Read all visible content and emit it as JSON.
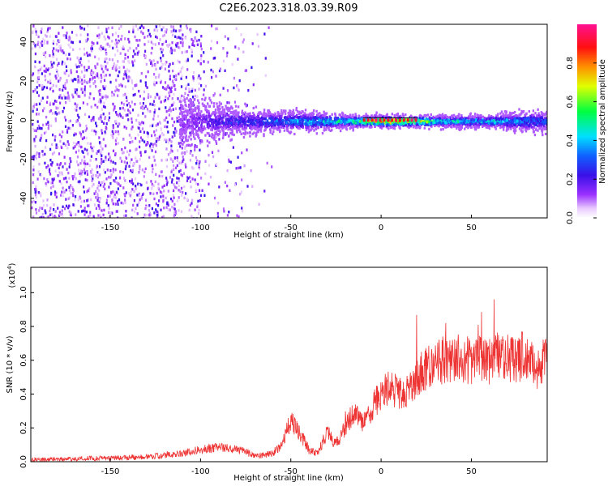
{
  "page_title": "C2E6.2023.318.03.39.R09",
  "chart_data": [
    {
      "type": "heatmap",
      "title": "",
      "xlabel": "Height of straight line (km)",
      "ylabel": "Frequency (Hz)",
      "xlim": [
        -194,
        92
      ],
      "ylim": [
        -50,
        49
      ],
      "xticks": [
        -150,
        -100,
        -50,
        0,
        50
      ],
      "yticks": [
        -40,
        -20,
        0,
        20,
        40
      ],
      "x_tick_labels": [
        "-150",
        "-100",
        "-50",
        "0",
        "50"
      ],
      "y_tick_labels": [
        "-40",
        "-20",
        "0",
        "20",
        "40"
      ],
      "colorbar": {
        "label": "Normalized spectral amplitude",
        "range": [
          0.0,
          1.0
        ],
        "ticks": [
          0.0,
          0.2,
          0.4,
          0.6,
          0.8
        ],
        "tick_labels": [
          "0.0",
          "0.2",
          "0.4",
          "0.6",
          "0.8"
        ],
        "colormap": "rainbow (white-violet-purple-blue-cyan-green-yellow-orange-red-magenta)"
      },
      "description_of_data": "Scattered low amplitude noise across all frequencies for heights below about -100 km; a narrow band centered near 0 Hz from about -110 km to 92 km, with amplitude rising to about 0.8-1.0 near 0 km and about 0.4-0.6 between 0 and 90 km; a thin line at 0 Hz from about -10 to 20 km.",
      "band_profile": {
        "x": [
          -110,
          -100,
          -90,
          -80,
          -70,
          -60,
          -50,
          -40,
          -30,
          -20,
          -10,
          0,
          10,
          20,
          30,
          40,
          50,
          60,
          70,
          80,
          90
        ],
        "peak_amplitude": [
          0.15,
          0.2,
          0.25,
          0.3,
          0.3,
          0.35,
          0.4,
          0.45,
          0.5,
          0.55,
          0.7,
          0.9,
          0.85,
          0.75,
          0.55,
          0.5,
          0.5,
          0.5,
          0.45,
          0.4,
          0.35
        ],
        "half_width_hz": [
          12,
          10,
          8,
          6,
          6,
          5,
          5,
          5,
          4,
          3,
          3,
          3,
          3,
          3,
          3,
          3,
          3,
          3,
          4,
          5,
          5
        ]
      },
      "grid": false,
      "legend": "none"
    },
    {
      "type": "line",
      "title": "",
      "xlabel": "Height of straight line (km)",
      "ylabel": "SNR (10 * v/v)",
      "y_multiplier": "(x10^4)",
      "y_multiplier_base": "(x10",
      "y_multiplier_exp": "4",
      "y_multiplier_close": ")",
      "xlim": [
        -194,
        92
      ],
      "ylim": [
        0,
        1.15
      ],
      "xticks": [
        -150,
        -100,
        -50,
        0,
        50
      ],
      "yticks": [
        0.0,
        0.2,
        0.4,
        0.6,
        0.8,
        1.0
      ],
      "x_tick_labels": [
        "-150",
        "-100",
        "-50",
        "0",
        "50"
      ],
      "y_tick_labels": [
        "0.0",
        "0.2",
        "0.4",
        "0.6",
        "0.8",
        "1.0"
      ],
      "series": [
        {
          "color": "#ee3333",
          "x": [
            -194,
            -180,
            -170,
            -160,
            -150,
            -140,
            -130,
            -120,
            -110,
            -100,
            -90,
            -80,
            -75,
            -70,
            -60,
            -55,
            -50,
            -45,
            -40,
            -35,
            -30,
            -25,
            -20,
            -15,
            -10,
            -5,
            0,
            5,
            10,
            15,
            20,
            25,
            30,
            35,
            40,
            45,
            50,
            55,
            60,
            65,
            70,
            75,
            80,
            85,
            92
          ],
          "y": [
            0.01,
            0.015,
            0.015,
            0.02,
            0.02,
            0.025,
            0.03,
            0.035,
            0.05,
            0.07,
            0.09,
            0.07,
            0.06,
            0.03,
            0.05,
            0.1,
            0.25,
            0.17,
            0.07,
            0.05,
            0.18,
            0.1,
            0.2,
            0.3,
            0.22,
            0.32,
            0.4,
            0.45,
            0.4,
            0.42,
            0.5,
            0.55,
            0.58,
            0.6,
            0.62,
            0.6,
            0.6,
            0.6,
            0.6,
            0.62,
            0.62,
            0.6,
            0.65,
            0.55,
            0.6
          ]
        }
      ],
      "grid": false,
      "legend": "none"
    }
  ]
}
